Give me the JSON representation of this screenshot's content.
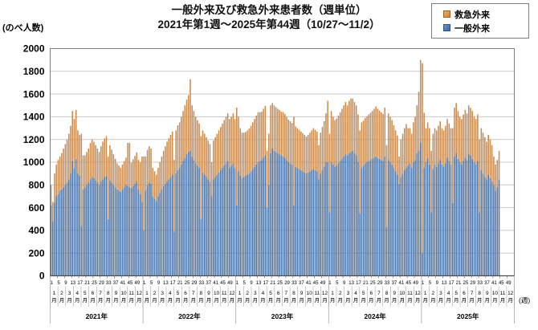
{
  "title": {
    "line1": "一般外来及び救急外来患者数（週単位）",
    "line2": "2021年第1週～2025年第44週（10/27～11/2）"
  },
  "y_axis": {
    "unit_label": "(のべ人数)",
    "min": 0,
    "max": 2000,
    "step": 200
  },
  "x_axis": {
    "unit_label": "(週)",
    "week_tick_labels": [
      "1",
      "5",
      "9",
      "13",
      "17",
      "21",
      "25",
      "29",
      "33",
      "37",
      "41",
      "45",
      "49"
    ],
    "month_labels": [
      "1月",
      "2月",
      "3月",
      "4月",
      "5月",
      "6月",
      "7月",
      "8月",
      "9月",
      "10月",
      "11月",
      "12月"
    ]
  },
  "legend": {
    "items": [
      {
        "label": "救急外来",
        "series": "emergency"
      },
      {
        "label": "一般外来",
        "series": "general"
      }
    ]
  },
  "colors": {
    "general_bar": "#4D74A7",
    "emergency_bar": "#CB8C52",
    "gridline": "#C9C9C9",
    "plot_border": "#7F7F7F",
    "axis": "#4D4D4D",
    "tick": "#666666",
    "separator": "#A6A6A6",
    "background": "#FFFFFF"
  },
  "chart_data": {
    "type": "bar",
    "stacked": true,
    "title": "一般外来及び救急外来患者数（週単位） 2021年第1週～2025年第44週（10/27～11/2）",
    "xlabel": "週",
    "ylabel": "のべ人数",
    "ylim": [
      0,
      2000
    ],
    "ytick_step": 200,
    "grid": true,
    "legend_position": "top-right",
    "series_names": [
      "一般外来",
      "救急外来"
    ],
    "axis_slots_per_year": 52,
    "years": [
      {
        "year_label": "2021年",
        "weeks": 52,
        "general": [
          620,
          480,
          640,
          700,
          720,
          750,
          760,
          780,
          800,
          820,
          850,
          900,
          1010,
          950,
          1030,
          900,
          880,
          440,
          760,
          780,
          800,
          820,
          850,
          870,
          860,
          840,
          820,
          800,
          830,
          850,
          870,
          880,
          500,
          840,
          820,
          800,
          780,
          760,
          750,
          740,
          760,
          780,
          800,
          790,
          780,
          770,
          790,
          810,
          830,
          760,
          720,
          650
        ],
        "emergency": [
          180,
          170,
          260,
          280,
          300,
          300,
          320,
          340,
          360,
          380,
          400,
          420,
          440,
          430,
          430,
          380,
          360,
          810,
          300,
          280,
          290,
          300,
          320,
          330,
          320,
          310,
          300,
          290,
          310,
          330,
          340,
          350,
          550,
          310,
          290,
          270,
          250,
          230,
          220,
          210,
          220,
          230,
          240,
          380,
          390,
          225,
          235,
          245,
          255,
          260,
          280,
          400
        ]
      },
      {
        "year_label": "2022年",
        "weeks": 52,
        "general": [
          400,
          750,
          800,
          820,
          810,
          700,
          680,
          660,
          700,
          730,
          760,
          790,
          810,
          830,
          850,
          870,
          890,
          390,
          900,
          930,
          950,
          980,
          1010,
          1040,
          1070,
          1090,
          1100,
          1050,
          1020,
          990,
          970,
          950,
          500,
          910,
          890,
          870,
          850,
          830,
          700,
          850,
          870,
          890,
          910,
          930,
          950,
          970,
          990,
          1010,
          950,
          970,
          990,
          950
        ],
        "emergency": [
          650,
          300,
          310,
          320,
          310,
          250,
          240,
          230,
          250,
          270,
          290,
          310,
          330,
          350,
          360,
          370,
          380,
          630,
          380,
          395,
          400,
          420,
          440,
          460,
          480,
          500,
          630,
          450,
          430,
          410,
          400,
          390,
          730,
          370,
          360,
          350,
          340,
          330,
          300,
          340,
          350,
          360,
          370,
          380,
          390,
          400,
          410,
          420,
          430,
          430,
          440,
          430
        ]
      },
      {
        "year_label": "2023年",
        "weeks": 52,
        "general": [
          620,
          920,
          880,
          860,
          870,
          880,
          890,
          900,
          920,
          940,
          960,
          980,
          1000,
          1010,
          1020,
          1040,
          1060,
          600,
          800,
          1080,
          1120,
          1100,
          1090,
          1080,
          1070,
          1060,
          1050,
          1040,
          1020,
          1000,
          990,
          980,
          620,
          960,
          950,
          940,
          930,
          920,
          910,
          900,
          910,
          920,
          930,
          940,
          930,
          920,
          850,
          900,
          930,
          960,
          1000,
          1000
        ],
        "emergency": [
          860,
          480,
          420,
          400,
          390,
          385,
          390,
          395,
          400,
          410,
          420,
          430,
          440,
          430,
          425,
          430,
          435,
          500,
          450,
          420,
          400,
          400,
          395,
          390,
          390,
          385,
          390,
          385,
          380,
          375,
          370,
          365,
          780,
          355,
          350,
          345,
          340,
          335,
          330,
          325,
          330,
          340,
          350,
          360,
          355,
          350,
          300,
          360,
          380,
          400,
          430,
          540
        ]
      },
      {
        "year_label": "2024年",
        "weeks": 52,
        "general": [
          560,
          1000,
          980,
          960,
          970,
          990,
          1010,
          1030,
          1050,
          1070,
          1060,
          1080,
          1090,
          1100,
          1080,
          1060,
          1000,
          550,
          950,
          970,
          990,
          1000,
          1010,
          1020,
          1030,
          1040,
          1050,
          1040,
          1030,
          1020,
          1010,
          1050,
          430,
          1020,
          1000,
          980,
          950,
          920,
          890,
          810,
          870,
          900,
          930,
          950,
          970,
          990,
          950,
          1000,
          1020,
          1080,
          1100,
          1175
        ],
        "emergency": [
          690,
          450,
          420,
          410,
          415,
          420,
          430,
          440,
          450,
          460,
          440,
          460,
          470,
          460,
          450,
          440,
          420,
          730,
          400,
          395,
          400,
          405,
          410,
          415,
          420,
          430,
          440,
          430,
          425,
          420,
          415,
          430,
          720,
          410,
          400,
          390,
          375,
          360,
          345,
          240,
          330,
          350,
          370,
          385,
          330,
          310,
          300,
          350,
          380,
          420,
          520,
          725
        ]
      },
      {
        "year_label": "2025年",
        "weeks": 44,
        "general": [
          200,
          950,
          1000,
          1040,
          980,
          560,
          940,
          980,
          960,
          990,
          1020,
          980,
          960,
          990,
          1040,
          1010,
          980,
          640,
          1050,
          1080,
          1030,
          1000,
          980,
          1010,
          1040,
          1020,
          1070,
          1060,
          1030,
          1000,
          980,
          1010,
          560,
          930,
          900,
          870,
          850,
          890,
          860,
          830,
          800,
          750,
          780,
          850
        ],
        "emergency": [
          1670,
          485,
          300,
          310,
          320,
          540,
          310,
          320,
          320,
          330,
          340,
          320,
          320,
          330,
          340,
          330,
          320,
          660,
          430,
          440,
          420,
          400,
          400,
          410,
          420,
          410,
          430,
          420,
          420,
          400,
          400,
          410,
          640,
          370,
          360,
          350,
          330,
          350,
          340,
          320,
          250,
          230,
          240,
          250
        ]
      }
    ]
  }
}
